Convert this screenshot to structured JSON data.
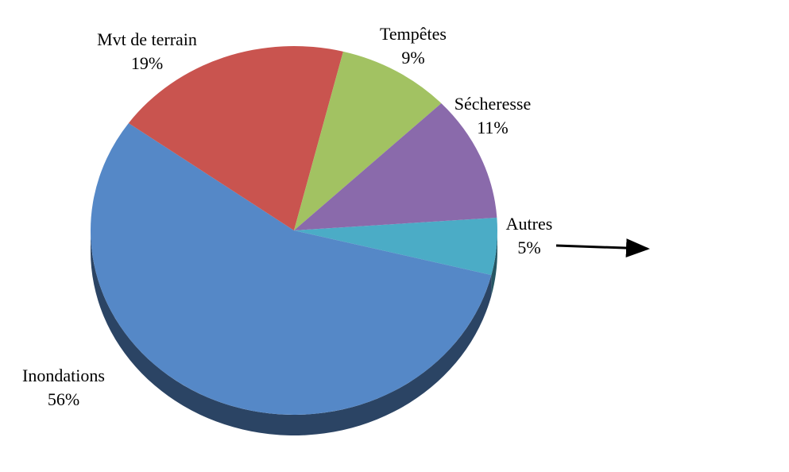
{
  "chart_data": {
    "type": "pie",
    "categories": [
      "Autres",
      "Inondations",
      "Mvt de terrain",
      "Tempêtes",
      "Sécheresse"
    ],
    "values": [
      5,
      56,
      19,
      9,
      11
    ],
    "value_labels": [
      "5%",
      "56%",
      "19%",
      "9%",
      "11%"
    ],
    "colors": [
      "#4bacc6",
      "#5588c7",
      "#c9544f",
      "#a2c262",
      "#8a6aab"
    ]
  }
}
